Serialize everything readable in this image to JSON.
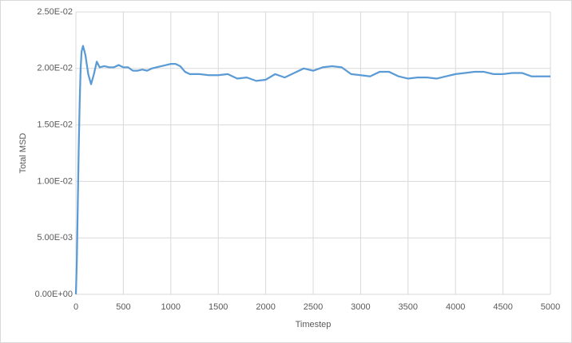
{
  "chart_data": {
    "type": "line",
    "x_label": "Timestep",
    "y_label": "Total MSD",
    "x": [
      0,
      10,
      20,
      30,
      40,
      50,
      60,
      75,
      100,
      130,
      160,
      190,
      220,
      250,
      300,
      350,
      400,
      450,
      500,
      550,
      600,
      650,
      700,
      750,
      800,
      850,
      900,
      950,
      1000,
      1050,
      1100,
      1150,
      1200,
      1300,
      1400,
      1500,
      1600,
      1700,
      1800,
      1900,
      2000,
      2100,
      2200,
      2300,
      2400,
      2500,
      2600,
      2700,
      2800,
      2900,
      3000,
      3100,
      3200,
      3300,
      3400,
      3500,
      3600,
      3700,
      3800,
      3900,
      4000,
      4100,
      4200,
      4300,
      4400,
      4500,
      4600,
      4700,
      4800,
      4900,
      5000
    ],
    "series": [
      {
        "name": "Total MSD",
        "color": "#5b9bd5",
        "values": [
          0,
          0.003,
          0.008,
          0.013,
          0.017,
          0.02,
          0.0215,
          0.022,
          0.0212,
          0.0195,
          0.0186,
          0.0195,
          0.0206,
          0.0201,
          0.0202,
          0.0201,
          0.0201,
          0.0203,
          0.0201,
          0.0201,
          0.0198,
          0.0198,
          0.0199,
          0.0198,
          0.02,
          0.0201,
          0.0202,
          0.0203,
          0.0204,
          0.0204,
          0.0202,
          0.0197,
          0.0195,
          0.0195,
          0.0194,
          0.0194,
          0.0195,
          0.0191,
          0.0192,
          0.0189,
          0.019,
          0.0195,
          0.0192,
          0.0196,
          0.02,
          0.0198,
          0.0201,
          0.0202,
          0.0201,
          0.0195,
          0.0194,
          0.0193,
          0.0197,
          0.0197,
          0.0193,
          0.0191,
          0.0192,
          0.0192,
          0.0191,
          0.0193,
          0.0195,
          0.0196,
          0.0197,
          0.0197,
          0.0195,
          0.0195,
          0.0196,
          0.0196,
          0.0193,
          0.0193,
          0.0193
        ]
      }
    ],
    "xlim": [
      0,
      5000
    ],
    "xticks": [
      0,
      500,
      1000,
      1500,
      2000,
      2500,
      3000,
      3500,
      4000,
      4500,
      5000
    ],
    "ylim": [
      0,
      0.025
    ],
    "yticks": [
      {
        "value": 0,
        "label": "0.00E+00"
      },
      {
        "value": 0.005,
        "label": "5.00E-03"
      },
      {
        "value": 0.01,
        "label": "1.00E-02"
      },
      {
        "value": 0.015,
        "label": "1.50E-02"
      },
      {
        "value": 0.02,
        "label": "2.00E-02"
      },
      {
        "value": 0.025,
        "label": "2.50E-02"
      }
    ],
    "grid": true
  }
}
